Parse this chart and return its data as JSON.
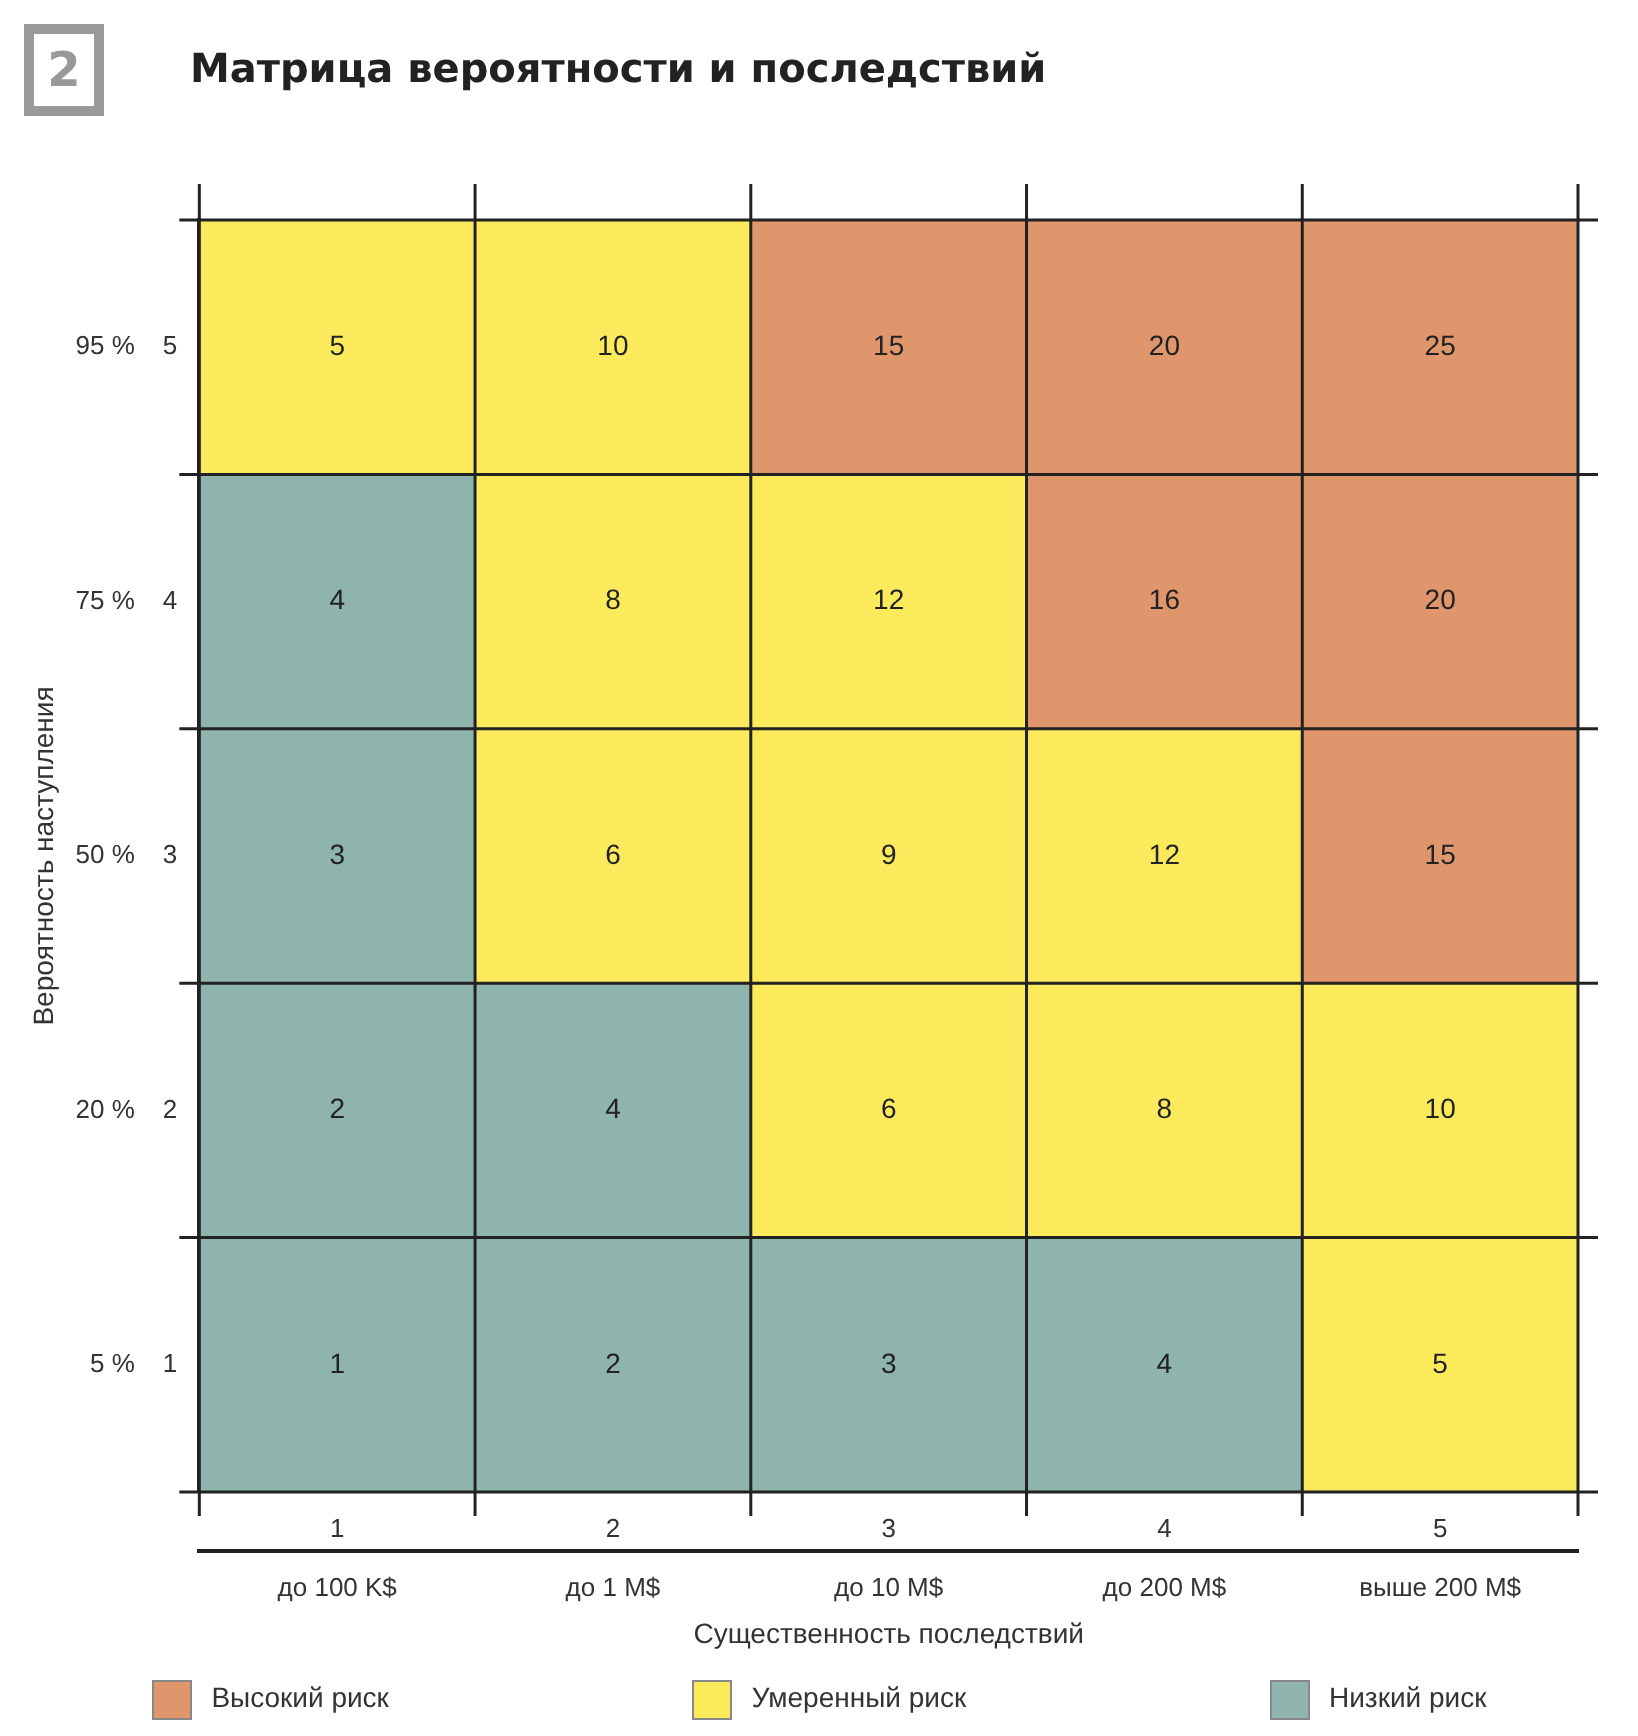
{
  "chart_data": {
    "type": "heatmap",
    "title": "Матрица вероятности и последствий",
    "annotations": [
      "2",
      "Высокий риск",
      "Умеренный риск",
      "Низкий риск"
    ],
    "xlabel": "Существенность последствий",
    "ylabel": "Вероятность наступления",
    "categories": [
      "до 100 K$",
      "до 1 M$",
      "до 10 M$",
      "до 200 M$",
      "выше 200 M$"
    ],
    "x2lim": [
      0.5,
      5.5
    ],
    "x2ticks": [
      1,
      2,
      3,
      4,
      5
    ],
    "y_categories": [
      "95 %",
      "75 %",
      "50 %",
      "20 %",
      "5 %"
    ],
    "y2_categories": [
      "5",
      "4",
      "3",
      "2",
      "1"
    ],
    "cells": [
      [
        5,
        10,
        15,
        20,
        25
      ],
      [
        4,
        8,
        12,
        16,
        20
      ],
      [
        3,
        6,
        9,
        12,
        15
      ],
      [
        2,
        4,
        6,
        8,
        10
      ],
      [
        1,
        2,
        3,
        4,
        5
      ]
    ],
    "colors": [
      [
        "#fbea5c",
        "#fbea5c",
        "#e0966c",
        "#e0966c",
        "#e0966c"
      ],
      [
        "#8fb3ad",
        "#fbea5c",
        "#fbea5c",
        "#e0966c",
        "#e0966c"
      ],
      [
        "#8fb3ad",
        "#fbea5c",
        "#fbea5c",
        "#fbea5c",
        "#e0966c"
      ],
      [
        "#8fb3ad",
        "#8fb3ad",
        "#fbea5c",
        "#fbea5c",
        "#fbea5c"
      ],
      [
        "#8fb3ad",
        "#8fb3ad",
        "#8fb3ad",
        "#8fb3ad",
        "#fbea5c"
      ]
    ],
    "grid": true,
    "data_labels": true
  }
}
